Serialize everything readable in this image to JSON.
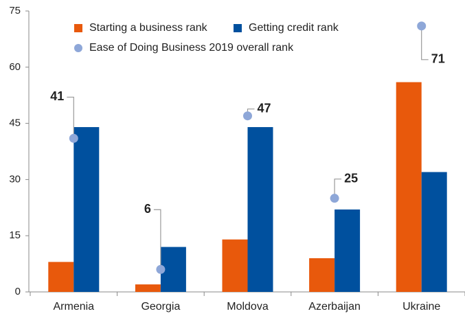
{
  "chart_data": {
    "type": "bar",
    "categories": [
      "Armenia",
      "Georgia",
      "Moldova",
      "Azerbaijan",
      "Ukraine"
    ],
    "series": [
      {
        "name": "Starting a business rank",
        "color": "#e8590c",
        "values": [
          8,
          2,
          14,
          9,
          56
        ]
      },
      {
        "name": "Getting credit rank",
        "color": "#00509e",
        "values": [
          44,
          12,
          44,
          22,
          32
        ]
      },
      {
        "name": "Ease of Doing Business 2019 overall rank",
        "type": "scatter",
        "color": "#8ea7d8",
        "values": [
          41,
          6,
          47,
          25,
          71
        ]
      }
    ],
    "ylim": [
      0,
      75
    ],
    "yticks": [
      0,
      15,
      30,
      45,
      60,
      75
    ],
    "grid": false,
    "legend": "top"
  }
}
